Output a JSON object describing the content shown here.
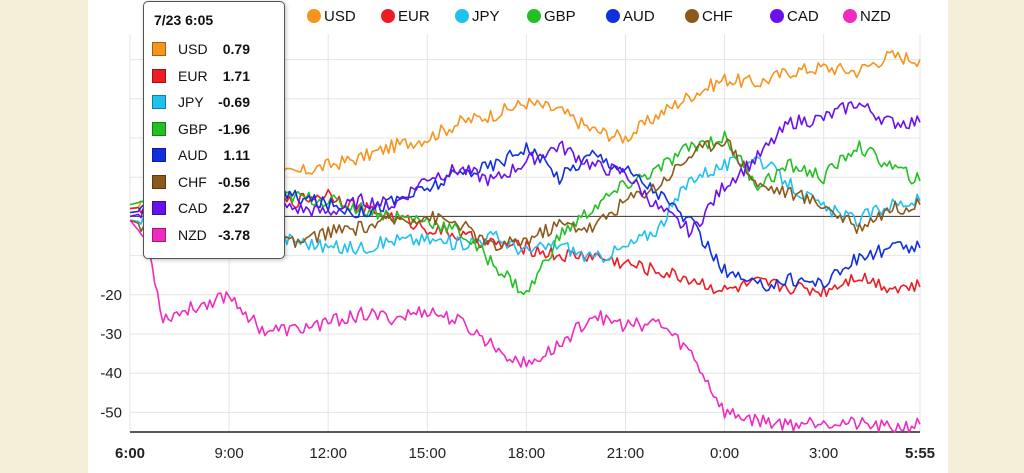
{
  "chart_data": {
    "type": "line",
    "title": "",
    "xlabel": "",
    "ylabel": "",
    "x_ticks": [
      "6:00",
      "9:00",
      "12:00",
      "15:00",
      "18:00",
      "21:00",
      "0:00",
      "3:00",
      "5:55"
    ],
    "x_tick_hours": [
      0,
      3,
      6,
      9,
      12,
      15,
      18,
      21,
      23.9167
    ],
    "xlim": [
      0,
      23.9167
    ],
    "y_ticks": [
      -20,
      -30,
      -40,
      -50
    ],
    "y_tick_labels": [
      "-20",
      "-30",
      "-40",
      "-50"
    ],
    "ylim": [
      -55,
      45
    ],
    "zero_line": 0,
    "series": [
      {
        "name": "USD",
        "color": "#f7941d",
        "points": [
          [
            0,
            2
          ],
          [
            1,
            3
          ],
          [
            2,
            5
          ],
          [
            3,
            8
          ],
          [
            4,
            10
          ],
          [
            5,
            11
          ],
          [
            6,
            13
          ],
          [
            7,
            15
          ],
          [
            8,
            18
          ],
          [
            9,
            20
          ],
          [
            10,
            24
          ],
          [
            11,
            26
          ],
          [
            12,
            29
          ],
          [
            13,
            27
          ],
          [
            14,
            22
          ],
          [
            15,
            20
          ],
          [
            16,
            26
          ],
          [
            17,
            31
          ],
          [
            18,
            35
          ],
          [
            19,
            34
          ],
          [
            20,
            37
          ],
          [
            21,
            38
          ],
          [
            22,
            37
          ],
          [
            23,
            41
          ],
          [
            23.9167,
            40
          ]
        ]
      },
      {
        "name": "EUR",
        "color": "#ee1c24",
        "points": [
          [
            0,
            2
          ],
          [
            1,
            3
          ],
          [
            2,
            4
          ],
          [
            3,
            5
          ],
          [
            4,
            3
          ],
          [
            5,
            4
          ],
          [
            6,
            6
          ],
          [
            7,
            2
          ],
          [
            8,
            0
          ],
          [
            9,
            -3
          ],
          [
            10,
            -5
          ],
          [
            11,
            -7
          ],
          [
            12,
            -8
          ],
          [
            13,
            -10
          ],
          [
            14,
            -10
          ],
          [
            15,
            -12
          ],
          [
            16,
            -14
          ],
          [
            17,
            -16
          ],
          [
            18,
            -19
          ],
          [
            19,
            -17
          ],
          [
            20,
            -18
          ],
          [
            21,
            -19
          ],
          [
            22,
            -15
          ],
          [
            23,
            -18
          ],
          [
            23.9167,
            -18
          ]
        ]
      },
      {
        "name": "JPY",
        "color": "#20c0f0",
        "points": [
          [
            0,
            -1
          ],
          [
            1,
            -2
          ],
          [
            2,
            -3
          ],
          [
            3,
            -4
          ],
          [
            4,
            -5
          ],
          [
            5,
            -6
          ],
          [
            6,
            -8
          ],
          [
            7,
            -8
          ],
          [
            8,
            -6
          ],
          [
            9,
            -6
          ],
          [
            10,
            -7
          ],
          [
            11,
            -5
          ],
          [
            12,
            -9
          ],
          [
            13,
            -7
          ],
          [
            14,
            -11
          ],
          [
            15,
            -8
          ],
          [
            16,
            -3
          ],
          [
            17,
            10
          ],
          [
            18,
            13
          ],
          [
            19,
            15
          ],
          [
            20,
            8
          ],
          [
            21,
            2
          ],
          [
            22,
            -1
          ],
          [
            23,
            3
          ],
          [
            23.9167,
            4
          ]
        ]
      },
      {
        "name": "GBP",
        "color": "#22c022",
        "points": [
          [
            0,
            3
          ],
          [
            1,
            5
          ],
          [
            2,
            8
          ],
          [
            3,
            7
          ],
          [
            4,
            6
          ],
          [
            5,
            5
          ],
          [
            6,
            4
          ],
          [
            7,
            2
          ],
          [
            8,
            0
          ],
          [
            9,
            -1
          ],
          [
            10,
            -4
          ],
          [
            11,
            -12
          ],
          [
            12,
            -20
          ],
          [
            13,
            -5
          ],
          [
            14,
            2
          ],
          [
            15,
            8
          ],
          [
            16,
            12
          ],
          [
            17,
            18
          ],
          [
            18,
            20
          ],
          [
            19,
            8
          ],
          [
            20,
            13
          ],
          [
            21,
            10
          ],
          [
            22,
            18
          ],
          [
            23,
            13
          ],
          [
            23.9167,
            9
          ]
        ]
      },
      {
        "name": "AUD",
        "color": "#1030e0",
        "points": [
          [
            0,
            1
          ],
          [
            1,
            2
          ],
          [
            2,
            4
          ],
          [
            3,
            3
          ],
          [
            4,
            6
          ],
          [
            5,
            5
          ],
          [
            6,
            3
          ],
          [
            7,
            1
          ],
          [
            8,
            4
          ],
          [
            9,
            7
          ],
          [
            10,
            11
          ],
          [
            11,
            13
          ],
          [
            12,
            18
          ],
          [
            13,
            10
          ],
          [
            14,
            16
          ],
          [
            15,
            12
          ],
          [
            16,
            6
          ],
          [
            17,
            -2
          ],
          [
            18,
            -14
          ],
          [
            19,
            -18
          ],
          [
            20,
            -16
          ],
          [
            21,
            -17
          ],
          [
            22,
            -11
          ],
          [
            23,
            -8
          ],
          [
            23.9167,
            -8
          ]
        ]
      },
      {
        "name": "CHF",
        "color": "#8b5a1b",
        "points": [
          [
            0,
            -1
          ],
          [
            1,
            -4
          ],
          [
            2,
            -6
          ],
          [
            3,
            -5
          ],
          [
            4,
            -6
          ],
          [
            5,
            -7
          ],
          [
            6,
            -4
          ],
          [
            7,
            -3
          ],
          [
            8,
            -1
          ],
          [
            9,
            0
          ],
          [
            10,
            -2
          ],
          [
            11,
            -8
          ],
          [
            12,
            -6
          ],
          [
            13,
            -2
          ],
          [
            14,
            -3
          ],
          [
            15,
            4
          ],
          [
            16,
            8
          ],
          [
            17,
            16
          ],
          [
            18,
            20
          ],
          [
            19,
            8
          ],
          [
            20,
            6
          ],
          [
            21,
            3
          ],
          [
            22,
            -3
          ],
          [
            23,
            2
          ],
          [
            23.9167,
            3
          ]
        ]
      },
      {
        "name": "CAD",
        "color": "#6a10ee",
        "points": [
          [
            0,
            0
          ],
          [
            1,
            2
          ],
          [
            2,
            0
          ],
          [
            3,
            -1
          ],
          [
            4,
            3
          ],
          [
            5,
            2
          ],
          [
            6,
            1
          ],
          [
            7,
            4
          ],
          [
            8,
            3
          ],
          [
            9,
            10
          ],
          [
            10,
            12
          ],
          [
            11,
            9
          ],
          [
            12,
            14
          ],
          [
            13,
            18
          ],
          [
            14,
            13
          ],
          [
            15,
            11
          ],
          [
            16,
            2
          ],
          [
            17,
            -4
          ],
          [
            18,
            8
          ],
          [
            19,
            15
          ],
          [
            20,
            24
          ],
          [
            21,
            25
          ],
          [
            22,
            29
          ],
          [
            23,
            24
          ],
          [
            23.9167,
            24
          ]
        ]
      },
      {
        "name": "NZD",
        "color": "#ee2cc0",
        "points": [
          [
            0,
            -1
          ],
          [
            0.5,
            -6
          ],
          [
            1,
            -26
          ],
          [
            2,
            -23
          ],
          [
            3,
            -20
          ],
          [
            4,
            -29
          ],
          [
            5,
            -29
          ],
          [
            6,
            -27
          ],
          [
            7,
            -25
          ],
          [
            8,
            -26
          ],
          [
            9,
            -24
          ],
          [
            10,
            -27
          ],
          [
            11,
            -33
          ],
          [
            12,
            -38
          ],
          [
            13,
            -33
          ],
          [
            14,
            -25
          ],
          [
            15,
            -28
          ],
          [
            16,
            -27
          ],
          [
            17,
            -35
          ],
          [
            18,
            -50
          ],
          [
            19,
            -52
          ],
          [
            20,
            -53
          ],
          [
            21,
            -52
          ],
          [
            22,
            -53
          ],
          [
            23,
            -54
          ],
          [
            23.9167,
            -53
          ]
        ]
      }
    ]
  },
  "tooltip": {
    "time": "7/23 6:05",
    "rows": [
      {
        "name": "USD",
        "value": "0.79",
        "color": "#f7941d"
      },
      {
        "name": "EUR",
        "value": "1.71",
        "color": "#ee1c24"
      },
      {
        "name": "JPY",
        "value": "-0.69",
        "color": "#20c0f0"
      },
      {
        "name": "GBP",
        "value": "-1.96",
        "color": "#22c022"
      },
      {
        "name": "AUD",
        "value": "1.11",
        "color": "#1030e0"
      },
      {
        "name": "CHF",
        "value": "-0.56",
        "color": "#8b5a1b"
      },
      {
        "name": "CAD",
        "value": "2.27",
        "color": "#6a10ee"
      },
      {
        "name": "NZD",
        "value": "-3.78",
        "color": "#ee2cc0"
      }
    ]
  }
}
